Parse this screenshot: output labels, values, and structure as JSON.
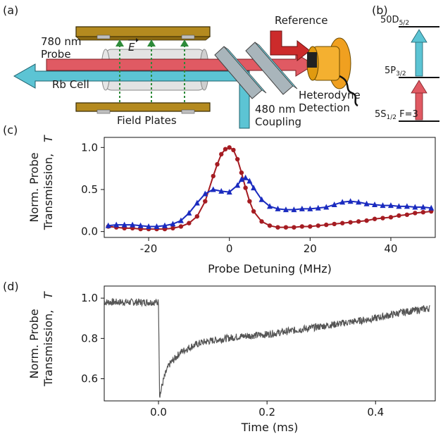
{
  "panels": {
    "a": "(a)",
    "b": "(b)",
    "c": "(c)",
    "d": "(d)"
  },
  "diagram": {
    "probe_wavelength": "780 nm",
    "probe_label": "Probe",
    "efield_label": "E",
    "cell_label": "Rb Cell",
    "plates_label": "Field Plates",
    "coupling_wavelength": "480 nm",
    "coupling_label": "Coupling",
    "reference_label": "Reference",
    "detection_line1": "Heterodyne",
    "detection_line2": "Detection",
    "colors": {
      "probe": "#e05a63",
      "coupling": "#5cc4d4",
      "plates": "#b48a1f",
      "cell": "#d9d9d9",
      "detector": "#f0a020",
      "reference": "#cc2b2b"
    }
  },
  "levels": {
    "upper": {
      "base": "50D",
      "sub": "5/2"
    },
    "middle": {
      "base": "5P",
      "sub": "3/2"
    },
    "lower": {
      "base": "5S",
      "sub": "1/2",
      "suffix": " F=3"
    }
  },
  "chart_data": [
    {
      "type": "line",
      "panel": "c",
      "xlabel": "Probe Detuning (MHz)",
      "ylabel_line1": "Norm. Probe",
      "ylabel_line2": "Transmission,",
      "ylabel_symbol": "T",
      "xlim": [
        -31,
        51
      ],
      "ylim": [
        -0.07,
        1.12
      ],
      "xticks": [
        -20,
        0,
        20,
        40
      ],
      "xtick_labels": [
        "-20",
        "0",
        "20",
        "40"
      ],
      "yticks": [
        0.0,
        0.5,
        1.0
      ],
      "ytick_labels": [
        "0.0",
        "0.5",
        "1.0"
      ],
      "series": [
        {
          "marker": "circle",
          "color": "#a51c22",
          "x": [
            -30,
            -28,
            -26,
            -24,
            -22,
            -20,
            -18,
            -16,
            -14,
            -12,
            -10,
            -8,
            -6,
            -4,
            -3,
            -2,
            -1,
            0,
            1,
            2,
            3,
            4,
            5,
            6,
            8,
            10,
            12,
            14,
            16,
            18,
            20,
            22,
            24,
            26,
            28,
            30,
            32,
            34,
            36,
            38,
            40,
            42,
            44,
            46,
            48,
            50
          ],
          "y": [
            0.06,
            0.05,
            0.04,
            0.04,
            0.03,
            0.03,
            0.03,
            0.03,
            0.04,
            0.06,
            0.1,
            0.18,
            0.36,
            0.66,
            0.8,
            0.92,
            0.98,
            1.0,
            0.97,
            0.86,
            0.7,
            0.52,
            0.36,
            0.24,
            0.12,
            0.07,
            0.05,
            0.05,
            0.05,
            0.06,
            0.06,
            0.07,
            0.08,
            0.09,
            0.1,
            0.11,
            0.12,
            0.13,
            0.15,
            0.16,
            0.17,
            0.19,
            0.2,
            0.22,
            0.23,
            0.24
          ]
        },
        {
          "marker": "triangle",
          "color": "#1a2bbf",
          "x": [
            -30,
            -28,
            -26,
            -24,
            -22,
            -20,
            -18,
            -16,
            -14,
            -12,
            -10,
            -8,
            -6,
            -4,
            -2,
            0,
            2,
            3,
            4,
            5,
            6,
            8,
            10,
            12,
            14,
            16,
            18,
            20,
            22,
            24,
            26,
            28,
            30,
            32,
            34,
            36,
            38,
            40,
            42,
            44,
            46,
            48,
            50
          ],
          "y": [
            0.07,
            0.08,
            0.08,
            0.08,
            0.07,
            0.06,
            0.06,
            0.07,
            0.09,
            0.13,
            0.22,
            0.34,
            0.45,
            0.5,
            0.48,
            0.47,
            0.55,
            0.62,
            0.64,
            0.6,
            0.52,
            0.38,
            0.3,
            0.27,
            0.26,
            0.26,
            0.27,
            0.27,
            0.28,
            0.29,
            0.32,
            0.35,
            0.36,
            0.35,
            0.33,
            0.32,
            0.31,
            0.31,
            0.3,
            0.3,
            0.29,
            0.29,
            0.28
          ]
        }
      ]
    },
    {
      "type": "line",
      "panel": "d",
      "xlabel": "Time (ms)",
      "ylabel_line1": "Norm. Probe",
      "ylabel_line2": "Transmission,",
      "ylabel_symbol": "T",
      "xlim": [
        -0.1,
        0.51
      ],
      "ylim": [
        0.49,
        1.06
      ],
      "xticks": [
        0.0,
        0.2,
        0.4
      ],
      "xtick_labels": [
        "0.0",
        "0.2",
        "0.4"
      ],
      "yticks": [
        0.6,
        0.8,
        1.0
      ],
      "ytick_labels": [
        "0.6",
        "0.8",
        "1.0"
      ],
      "series": [
        {
          "color": "#555555",
          "noise_amplitude": 0.018,
          "x": [
            -0.1,
            -0.05,
            0.0,
            0.002,
            0.004,
            0.006,
            0.01,
            0.015,
            0.02,
            0.03,
            0.04,
            0.06,
            0.08,
            0.1,
            0.15,
            0.2,
            0.25,
            0.3,
            0.35,
            0.4,
            0.45,
            0.5
          ],
          "y": [
            0.98,
            0.98,
            0.98,
            0.52,
            0.53,
            0.56,
            0.6,
            0.64,
            0.67,
            0.7,
            0.73,
            0.76,
            0.78,
            0.79,
            0.81,
            0.82,
            0.84,
            0.86,
            0.88,
            0.9,
            0.93,
            0.95
          ]
        }
      ]
    }
  ]
}
